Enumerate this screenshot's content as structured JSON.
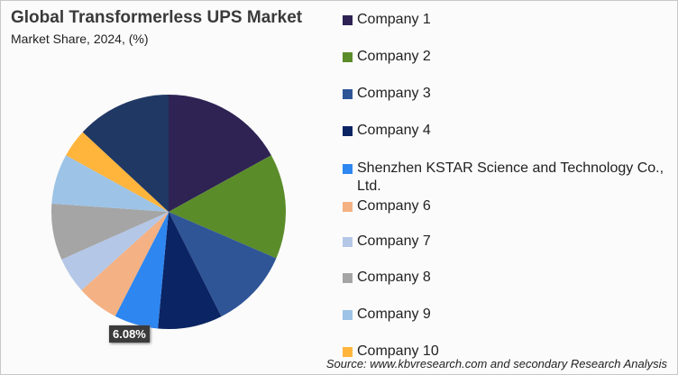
{
  "chart_data": {
    "type": "pie",
    "title": "Global Transformerless  UPS Market",
    "subtitle": "Market Share, 2024, (%)",
    "start_angle": "top, clockwise",
    "slices": [
      {
        "label": "Company 1",
        "value": 17.0,
        "color": "#2e2353"
      },
      {
        "label": "Company 2",
        "value": 14.5,
        "color": "#5b8c2a"
      },
      {
        "label": "Company 3",
        "value": 11.1,
        "color": "#2f5597"
      },
      {
        "label": "Company 4",
        "value": 8.9,
        "color": "#0b2463"
      },
      {
        "label": "Shenzhen KSTAR Science and Technology Co., Ltd.",
        "value": 6.08,
        "color": "#2e86f0",
        "data_label": "6.08%"
      },
      {
        "label": "Company 6",
        "value": 5.8,
        "color": "#f4b183"
      },
      {
        "label": "Company 7",
        "value": 5.0,
        "color": "#b4c7e7"
      },
      {
        "label": "Company 8",
        "value": 7.8,
        "color": "#a5a5a5"
      },
      {
        "label": "Company 9",
        "value": 6.9,
        "color": "#9dc3e6"
      },
      {
        "label": "Company 10",
        "value": 3.9,
        "color": "#ffb53c"
      },
      {
        "label": "",
        "value": 13.1,
        "color": "#203864"
      }
    ],
    "legend": [
      "Company 1",
      "Company 2",
      "Company 3",
      "Company 4",
      "Shenzhen KSTAR Science and Technology Co., Ltd.",
      "Company 6",
      "Company 7",
      "Company 8",
      "Company 9",
      "Company 10"
    ],
    "legend_placement": "right"
  },
  "source": "Source: www.kbvresearch.com and secondary Research Analysis"
}
